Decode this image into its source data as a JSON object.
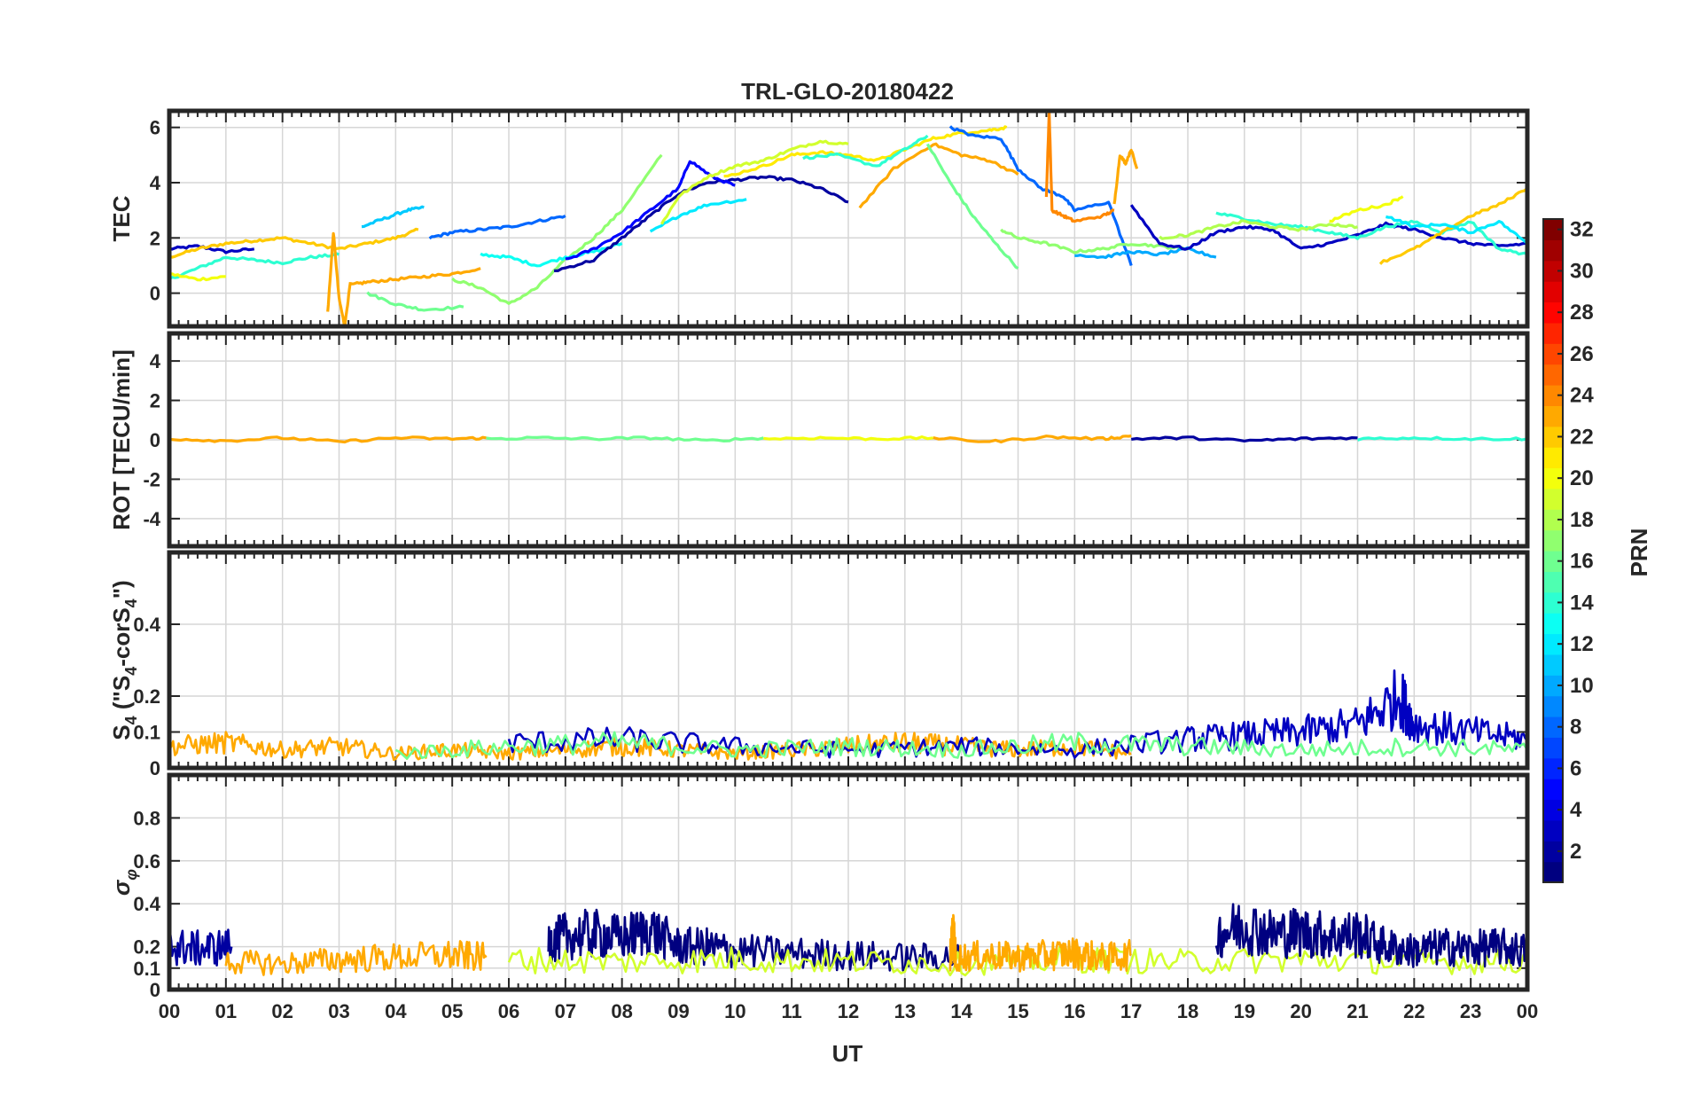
{
  "chart_data": {
    "type": "line",
    "title": "TRL-GLO-20180422",
    "xlabel": "UT",
    "x_range_hours": [
      0,
      24
    ],
    "x_ticks": [
      "00",
      "01",
      "02",
      "03",
      "04",
      "05",
      "06",
      "07",
      "08",
      "09",
      "10",
      "11",
      "12",
      "13",
      "14",
      "15",
      "16",
      "17",
      "18",
      "19",
      "20",
      "21",
      "22",
      "23",
      "00"
    ],
    "colorbar": {
      "label": "PRN",
      "range": [
        1,
        32
      ],
      "ticks": [
        "2",
        "4",
        "6",
        "8",
        "10",
        "12",
        "14",
        "16",
        "18",
        "20",
        "22",
        "24",
        "26",
        "28",
        "30",
        "32"
      ],
      "colormap": [
        "#00008f",
        "#0000ff",
        "#00ffff",
        "#ffff00",
        "#ff0000",
        "#800000"
      ]
    },
    "panels": [
      {
        "id": "tec",
        "ylabel": "TEC",
        "ylim": [
          -1.2,
          6.6
        ],
        "yticks": [
          "0",
          "2",
          "4",
          "6"
        ],
        "series": [
          {
            "prn": 3,
            "x": [
              0,
              0.5,
              1,
              1.5
            ],
            "y": [
              1.6,
              1.7,
              1.5,
              1.6
            ]
          },
          {
            "prn": 22,
            "x": [
              0,
              0.5,
              1,
              1.5,
              2,
              2.5,
              3,
              3.5,
              4,
              4.4
            ],
            "y": [
              1.3,
              1.6,
              1.8,
              1.9,
              2.0,
              1.8,
              1.6,
              1.8,
              2.0,
              2.3
            ]
          },
          {
            "prn": 14,
            "x": [
              0,
              0.5,
              1,
              1.5,
              2,
              2.5,
              3
            ],
            "y": [
              0.5,
              0.9,
              1.3,
              1.2,
              1.1,
              1.3,
              1.4
            ]
          },
          {
            "prn": 20,
            "x": [
              0,
              0.5,
              1
            ],
            "y": [
              0.7,
              0.5,
              0.6
            ]
          },
          {
            "prn": 11,
            "x": [
              3.4,
              3.8,
              4.2,
              4.5
            ],
            "y": [
              2.4,
              2.7,
              3.0,
              3.1
            ]
          },
          {
            "prn": 8,
            "x": [
              4.6,
              5,
              5.5,
              6,
              6.5,
              7
            ],
            "y": [
              2.0,
              2.2,
              2.3,
              2.4,
              2.6,
              2.8
            ]
          },
          {
            "prn": 23,
            "x": [
              2.8,
              2.9,
              3.0,
              3.1,
              3.2
            ],
            "y": [
              -0.7,
              2.2,
              -0.2,
              -1.2,
              0.4
            ]
          },
          {
            "prn": 23,
            "x": [
              3.2,
              3.5,
              4,
              4.5,
              5,
              5.5
            ],
            "y": [
              0.3,
              0.4,
              0.5,
              0.6,
              0.7,
              0.9
            ]
          },
          {
            "prn": 16,
            "x": [
              3.5,
              4,
              4.5,
              5.2
            ],
            "y": [
              0.0,
              -0.4,
              -0.6,
              -0.5
            ]
          },
          {
            "prn": 17,
            "x": [
              5,
              5.5,
              6,
              6.5,
              7,
              7.5,
              8,
              8.7
            ],
            "y": [
              0.5,
              0.2,
              -0.4,
              0.2,
              1.2,
              2.0,
              3.0,
              5.0
            ]
          },
          {
            "prn": 13,
            "x": [
              5.5,
              6,
              6.5,
              7,
              7.5,
              8
            ],
            "y": [
              1.4,
              1.3,
              1.0,
              1.3,
              1.5,
              1.8
            ]
          },
          {
            "prn": 2,
            "x": [
              6.8,
              7.5,
              8,
              8.5,
              9,
              9.5,
              10,
              10.5,
              11,
              11.5,
              12
            ],
            "y": [
              0.8,
              1.2,
              2.0,
              2.8,
              3.6,
              4.0,
              4.1,
              4.2,
              4.1,
              3.8,
              3.3
            ]
          },
          {
            "prn": 5,
            "x": [
              7,
              7.5,
              8,
              8.5,
              9,
              9.2,
              9.6,
              10
            ],
            "y": [
              1.2,
              1.6,
              2.2,
              3.0,
              3.8,
              4.8,
              4.2,
              3.9
            ]
          },
          {
            "prn": 12,
            "x": [
              8.5,
              9,
              9.5,
              10.2
            ],
            "y": [
              2.2,
              2.8,
              3.2,
              3.4
            ]
          },
          {
            "prn": 19,
            "x": [
              8.7,
              9,
              9.5,
              10,
              10.5,
              11,
              11.5,
              12
            ],
            "y": [
              2.5,
              3.5,
              4.2,
              4.6,
              4.8,
              5.2,
              5.5,
              5.4
            ]
          },
          {
            "prn": 21,
            "x": [
              9.8,
              10.5,
              11,
              11.5,
              12,
              12.5,
              13,
              13.5,
              14,
              14.5,
              14.8
            ],
            "y": [
              4.2,
              4.6,
              5.0,
              5.1,
              5.0,
              4.8,
              5.2,
              5.6,
              5.8,
              5.9,
              6.0
            ]
          },
          {
            "prn": 14,
            "x": [
              11.2,
              11.8,
              12.5,
              13.0,
              13.4
            ],
            "y": [
              4.9,
              5.0,
              4.6,
              5.2,
              5.7
            ]
          },
          {
            "prn": 23,
            "x": [
              12.2,
              12.8,
              13.5,
              14,
              14.5,
              15
            ],
            "y": [
              3.1,
              4.5,
              5.4,
              5.0,
              4.8,
              4.3
            ]
          },
          {
            "prn": 16,
            "x": [
              13.4,
              13.8,
              14.2,
              14.6,
              15
            ],
            "y": [
              5.4,
              4.0,
              2.8,
              1.8,
              0.9
            ]
          },
          {
            "prn": 8,
            "x": [
              13.8,
              14.2,
              14.7,
              15,
              15.4,
              15.8,
              16,
              16.6,
              17
            ],
            "y": [
              6.0,
              5.7,
              5.6,
              4.5,
              3.8,
              3.5,
              3.0,
              3.3,
              1.0
            ]
          },
          {
            "prn": 17,
            "x": [
              14.7,
              15,
              15.5,
              16,
              16.5,
              17,
              17.5,
              18
            ],
            "y": [
              2.3,
              2.0,
              1.8,
              1.5,
              1.6,
              1.8,
              1.7,
              1.6
            ]
          },
          {
            "prn": 24,
            "x": [
              15.5,
              15.55,
              15.6,
              15.8,
              16,
              16.5,
              16.7
            ],
            "y": [
              3.5,
              6.6,
              3.0,
              2.8,
              2.6,
              2.8,
              3.0
            ]
          },
          {
            "prn": 23,
            "x": [
              16.7,
              16.8,
              16.9,
              17,
              17.1
            ],
            "y": [
              3.2,
              5.0,
              4.7,
              5.2,
              4.5
            ]
          },
          {
            "prn": 10,
            "x": [
              16,
              16.5,
              17,
              17.5,
              18,
              18.5
            ],
            "y": [
              1.4,
              1.3,
              1.5,
              1.4,
              1.6,
              1.3
            ]
          },
          {
            "prn": 3,
            "x": [
              17,
              17.5,
              18,
              18.5,
              19,
              19.5,
              20,
              20.5,
              21,
              21.5,
              22,
              22.5,
              23,
              23.5,
              24
            ],
            "y": [
              3.2,
              1.8,
              1.6,
              2.2,
              2.4,
              2.3,
              1.6,
              1.8,
              2.1,
              2.5,
              2.3,
              2.0,
              1.8,
              1.7,
              1.8
            ]
          },
          {
            "prn": 14,
            "x": [
              18.5,
              19,
              19.5,
              20,
              20.5,
              21,
              21.5,
              22,
              22.5,
              23,
              23.5,
              24
            ],
            "y": [
              2.9,
              2.7,
              2.5,
              2.4,
              2.2,
              2.0,
              2.4,
              2.6,
              2.2,
              2.6,
              1.6,
              1.4
            ]
          },
          {
            "prn": 18,
            "x": [
              17.5,
              18,
              18.5,
              19,
              19.5,
              20,
              20.5,
              21
            ],
            "y": [
              2.0,
              2.1,
              2.4,
              2.6,
              2.4,
              2.3,
              2.5,
              2.4
            ]
          },
          {
            "prn": 20,
            "x": [
              20.5,
              21,
              21.5,
              21.8
            ],
            "y": [
              2.6,
              3.0,
              3.2,
              3.5
            ]
          },
          {
            "prn": 22,
            "x": [
              21.4,
              22,
              22.5,
              23,
              23.5,
              24
            ],
            "y": [
              1.1,
              1.6,
              2.2,
              2.8,
              3.2,
              3.8
            ]
          },
          {
            "prn": 12,
            "x": [
              21.5,
              22,
              22.5,
              23,
              23.5,
              24
            ],
            "y": [
              2.8,
              2.4,
              2.5,
              2.2,
              2.6,
              1.8
            ]
          }
        ]
      },
      {
        "id": "rot",
        "ylabel": "ROT [TECU/min]",
        "ylim": [
          -5.4,
          5.4
        ],
        "yticks": [
          "-4",
          "-2",
          "0",
          "2",
          "4"
        ],
        "series": [
          {
            "prn": 23,
            "x": [
              0,
              1,
              2,
              3,
              4,
              5,
              5.6
            ],
            "y": [
              0.05,
              -0.05,
              0.1,
              -0.1,
              0.1,
              0.05,
              0.1
            ]
          },
          {
            "prn": 16,
            "x": [
              5.6,
              6.5,
              7.5,
              8.5,
              9.5,
              10.5
            ],
            "y": [
              0.05,
              0.1,
              0.05,
              0.1,
              -0.05,
              0.1
            ]
          },
          {
            "prn": 20,
            "x": [
              10.5,
              11.5,
              12.5,
              13.5
            ],
            "y": [
              0.05,
              0.1,
              0.05,
              0.1
            ]
          },
          {
            "prn": 23,
            "x": [
              13.5,
              14.5,
              15.5,
              16.5,
              17
            ],
            "y": [
              0.1,
              -0.1,
              0.15,
              0.05,
              0.2
            ]
          },
          {
            "prn": 2,
            "x": [
              17,
              18,
              19,
              20,
              21
            ],
            "y": [
              0.05,
              0.1,
              -0.05,
              0.05,
              0.1
            ]
          },
          {
            "prn": 14,
            "x": [
              21,
              22,
              23,
              24
            ],
            "y": [
              0.05,
              0.1,
              0.05,
              0.05
            ]
          }
        ]
      },
      {
        "id": "s4",
        "ylabel": "S4 (\"S4-corS4\")",
        "ylabel_main": "S",
        "ylabel_sub": "4",
        "ylabel_rest": " (\"S",
        "ylabel_rest2": "-corS",
        "ylabel_end": "\")",
        "ylim": [
          0,
          0.6
        ],
        "yticks": [
          "0",
          "0.1",
          "0.2",
          "0.4"
        ],
        "annotations": [
          "peak near 21.75 UT ~0.2"
        ],
        "series": [
          {
            "prn": 23,
            "x": [
              0,
              1,
              2,
              3,
              4,
              5,
              6,
              7,
              8,
              9,
              10,
              11,
              12,
              13,
              14,
              15,
              16,
              17
            ],
            "y": [
              0.06,
              0.07,
              0.05,
              0.06,
              0.04,
              0.05,
              0.04,
              0.05,
              0.06,
              0.05,
              0.04,
              0.05,
              0.06,
              0.07,
              0.06,
              0.05,
              0.06,
              0.04
            ]
          },
          {
            "prn": 3,
            "x": [
              6,
              8,
              10,
              12,
              14,
              16,
              18,
              19,
              20,
              21,
              21.75,
              22,
              23,
              24
            ],
            "y": [
              0.07,
              0.08,
              0.06,
              0.05,
              0.06,
              0.05,
              0.08,
              0.09,
              0.1,
              0.12,
              0.2,
              0.12,
              0.1,
              0.08
            ]
          },
          {
            "prn": 16,
            "x": [
              4,
              6,
              8,
              10,
              12,
              14,
              16,
              18,
              20,
              22,
              24
            ],
            "y": [
              0.04,
              0.06,
              0.07,
              0.05,
              0.06,
              0.05,
              0.07,
              0.06,
              0.05,
              0.06,
              0.05
            ]
          }
        ]
      },
      {
        "id": "sigma",
        "ylabel": "σφ",
        "ylabel_main": "σ",
        "ylabel_sub": "φ",
        "ylim": [
          0,
          1.0
        ],
        "yticks": [
          "0",
          "0.1",
          "0.2",
          "0.4",
          "0.6",
          "0.8"
        ],
        "series": [
          {
            "prn": 2,
            "x": [
              0,
              0.5,
              1.1
            ],
            "y": [
              0.2,
              0.19,
              0.2
            ]
          },
          {
            "prn": 23,
            "x": [
              1,
              2,
              3,
              4,
              5,
              5.6
            ],
            "y": [
              0.13,
              0.12,
              0.14,
              0.15,
              0.16,
              0.15
            ]
          },
          {
            "prn": 1,
            "x": [
              6.7,
              7,
              7.5,
              8,
              8.5,
              9,
              9.5,
              10,
              11,
              12,
              13,
              14
            ],
            "y": [
              0.22,
              0.25,
              0.26,
              0.24,
              0.28,
              0.2,
              0.2,
              0.18,
              0.17,
              0.16,
              0.15,
              0.15
            ]
          },
          {
            "prn": 19,
            "x": [
              6,
              8,
              10,
              12,
              14,
              16,
              18,
              20,
              22,
              24
            ],
            "y": [
              0.14,
              0.13,
              0.14,
              0.13,
              0.12,
              0.14,
              0.13,
              0.14,
              0.13,
              0.13
            ]
          },
          {
            "prn": 23,
            "x": [
              13.8,
              13.85,
              13.9,
              14.5,
              15,
              15.5,
              16,
              16.5,
              17
            ],
            "y": [
              0.15,
              0.27,
              0.15,
              0.16,
              0.15,
              0.16,
              0.17,
              0.15,
              0.16
            ]
          },
          {
            "prn": 1,
            "x": [
              18.5,
              19,
              19.5,
              20,
              20.5,
              21,
              21.5,
              22,
              22.5,
              23,
              23.5,
              24
            ],
            "y": [
              0.26,
              0.3,
              0.26,
              0.27,
              0.25,
              0.26,
              0.2,
              0.18,
              0.2,
              0.19,
              0.2,
              0.18
            ]
          }
        ]
      }
    ]
  }
}
